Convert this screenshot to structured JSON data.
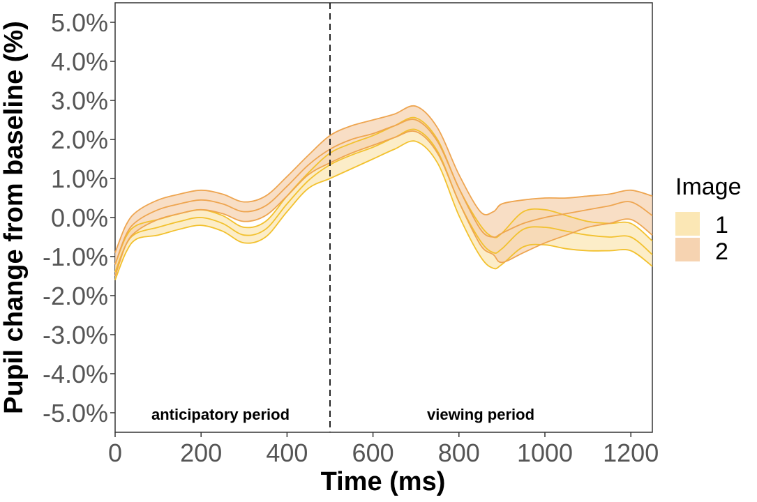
{
  "chart_data": {
    "type": "line",
    "title": "",
    "xlabel": "Time (ms)",
    "ylabel": "Pupil change from baseline (%)",
    "xlim": [
      0,
      1250
    ],
    "ylim": [
      -5.5,
      5.5
    ],
    "x_ticks": [
      0,
      200,
      400,
      600,
      800,
      1000,
      1200
    ],
    "x_tick_labels": [
      "0",
      "200",
      "400",
      "600",
      "800",
      "1000",
      "1200"
    ],
    "y_ticks": [
      -5,
      -4,
      -3,
      -2,
      -1,
      0,
      1,
      2,
      3,
      4,
      5
    ],
    "y_tick_labels": [
      "-5.0%",
      "-4.0%",
      "-3.0%",
      "-2.0%",
      "-1.0%",
      "0.0%",
      "1.0%",
      "2.0%",
      "3.0%",
      "4.0%",
      "5.0%"
    ],
    "vline": 500,
    "annotations": [
      "anticipatory period",
      "viewing period"
    ],
    "legend": {
      "title": "Image",
      "position": "right"
    },
    "series": [
      {
        "name": "1",
        "fill": "#fbe7b5",
        "line": "#f2c12e",
        "x": [
          0,
          25,
          50,
          100,
          150,
          200,
          250,
          300,
          350,
          400,
          450,
          500,
          550,
          600,
          650,
          700,
          750,
          800,
          850,
          880,
          900,
          950,
          1000,
          1050,
          1100,
          1150,
          1200,
          1250
        ],
        "mean": [
          -1.4,
          -0.7,
          -0.4,
          -0.25,
          -0.1,
          0.0,
          -0.15,
          -0.45,
          -0.3,
          0.35,
          0.95,
          1.35,
          1.6,
          1.8,
          2.05,
          2.25,
          1.7,
          0.4,
          -0.6,
          -0.9,
          -0.8,
          -0.3,
          -0.25,
          -0.35,
          -0.45,
          -0.5,
          -0.5,
          -0.95
        ],
        "lower": [
          -1.6,
          -0.9,
          -0.55,
          -0.45,
          -0.3,
          -0.2,
          -0.35,
          -0.65,
          -0.5,
          0.15,
          0.75,
          1.0,
          1.25,
          1.5,
          1.75,
          1.95,
          1.4,
          0.05,
          -1.0,
          -1.3,
          -1.2,
          -0.75,
          -0.7,
          -0.8,
          -0.85,
          -0.85,
          -0.85,
          -1.25
        ],
        "upper": [
          -1.2,
          -0.5,
          -0.2,
          -0.05,
          0.1,
          0.2,
          0.05,
          -0.25,
          -0.1,
          0.55,
          1.15,
          1.65,
          1.9,
          2.1,
          2.35,
          2.55,
          2.0,
          0.75,
          -0.2,
          -0.5,
          -0.4,
          0.15,
          0.2,
          0.05,
          -0.1,
          -0.15,
          -0.15,
          -0.6
        ]
      },
      {
        "name": "2",
        "fill": "#f6d3b1",
        "line": "#eea550",
        "x": [
          0,
          25,
          50,
          100,
          150,
          200,
          250,
          300,
          350,
          400,
          450,
          500,
          550,
          600,
          650,
          700,
          750,
          800,
          850,
          880,
          900,
          950,
          1000,
          1050,
          1100,
          1150,
          1200,
          1250
        ],
        "mean": [
          -1.2,
          -0.45,
          -0.1,
          0.2,
          0.35,
          0.45,
          0.35,
          0.15,
          0.3,
          0.8,
          1.35,
          1.75,
          2.0,
          2.15,
          2.35,
          2.5,
          1.95,
          0.75,
          -0.3,
          -0.5,
          -0.4,
          -0.15,
          0.0,
          0.1,
          0.2,
          0.3,
          0.4,
          0.05
        ],
        "lower": [
          -1.5,
          -0.7,
          -0.35,
          -0.05,
          0.1,
          0.2,
          0.1,
          -0.1,
          0.05,
          0.55,
          1.1,
          1.4,
          1.65,
          1.85,
          2.05,
          2.2,
          1.65,
          0.4,
          -0.7,
          -0.95,
          -1.15,
          -0.9,
          -0.65,
          -0.45,
          -0.25,
          -0.15,
          -0.05,
          -0.45
        ],
        "upper": [
          -0.9,
          -0.2,
          0.15,
          0.45,
          0.6,
          0.7,
          0.6,
          0.4,
          0.55,
          1.05,
          1.6,
          2.1,
          2.35,
          2.5,
          2.65,
          2.85,
          2.3,
          1.1,
          0.15,
          0.15,
          0.35,
          0.45,
          0.5,
          0.5,
          0.55,
          0.6,
          0.7,
          0.55
        ]
      }
    ]
  }
}
